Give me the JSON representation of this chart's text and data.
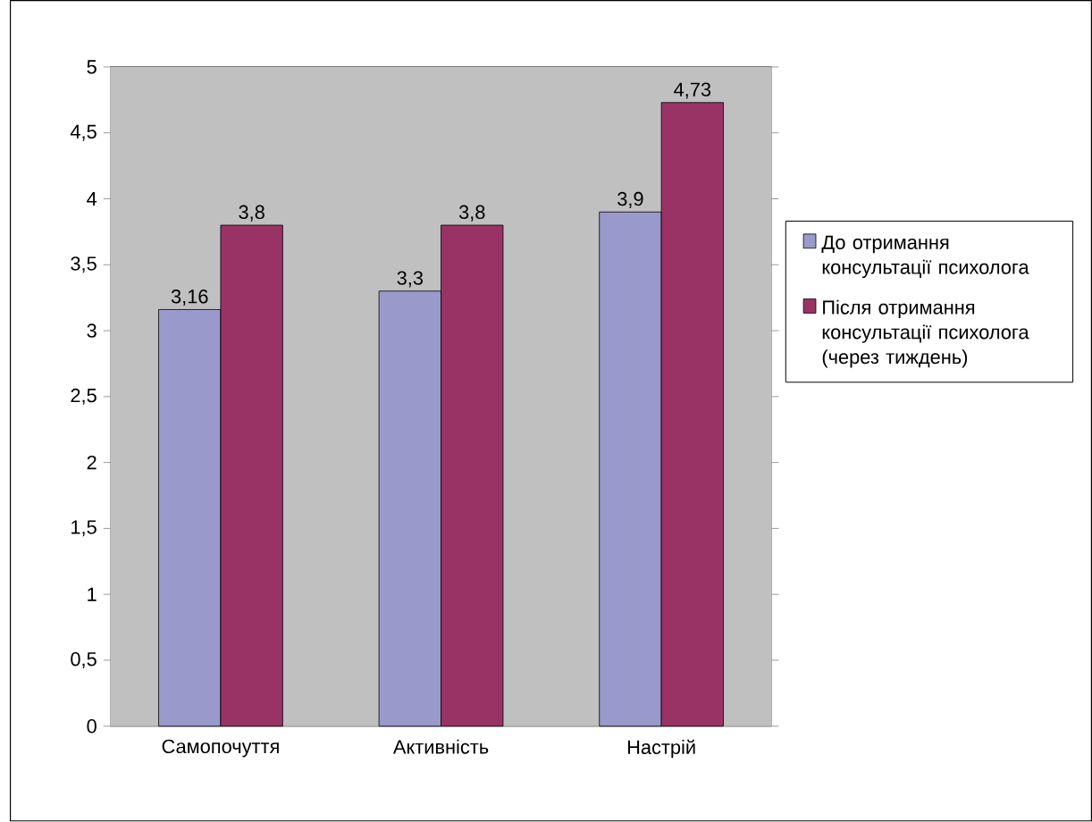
{
  "chart_data": {
    "type": "bar",
    "categories": [
      "Самопочуття",
      "Активність",
      "Настрій"
    ],
    "series": [
      {
        "name": "До отримання консультації психолога",
        "color": "#9999cc",
        "values": [
          3.16,
          3.3,
          3.9
        ],
        "value_labels": [
          "3,16",
          "3,3",
          "3,9"
        ]
      },
      {
        "name": "Після отримання консультації психолога (через тиждень)",
        "color": "#993366",
        "values": [
          3.8,
          3.8,
          4.73
        ],
        "value_labels": [
          "3,8",
          "3,8",
          "4,73"
        ]
      }
    ],
    "ylim": [
      0,
      5
    ],
    "yticks": [
      0,
      {
        "value": 0.5,
        "label": "0,5"
      },
      1,
      {
        "value": 1.5,
        "label": "1,5"
      },
      2,
      {
        "value": 2.5,
        "label": "2,5"
      },
      3,
      {
        "value": 3.5,
        "label": "3,5"
      },
      4,
      {
        "value": 4.5,
        "label": "4,5"
      },
      5
    ],
    "grid": "y",
    "legend": "right"
  }
}
